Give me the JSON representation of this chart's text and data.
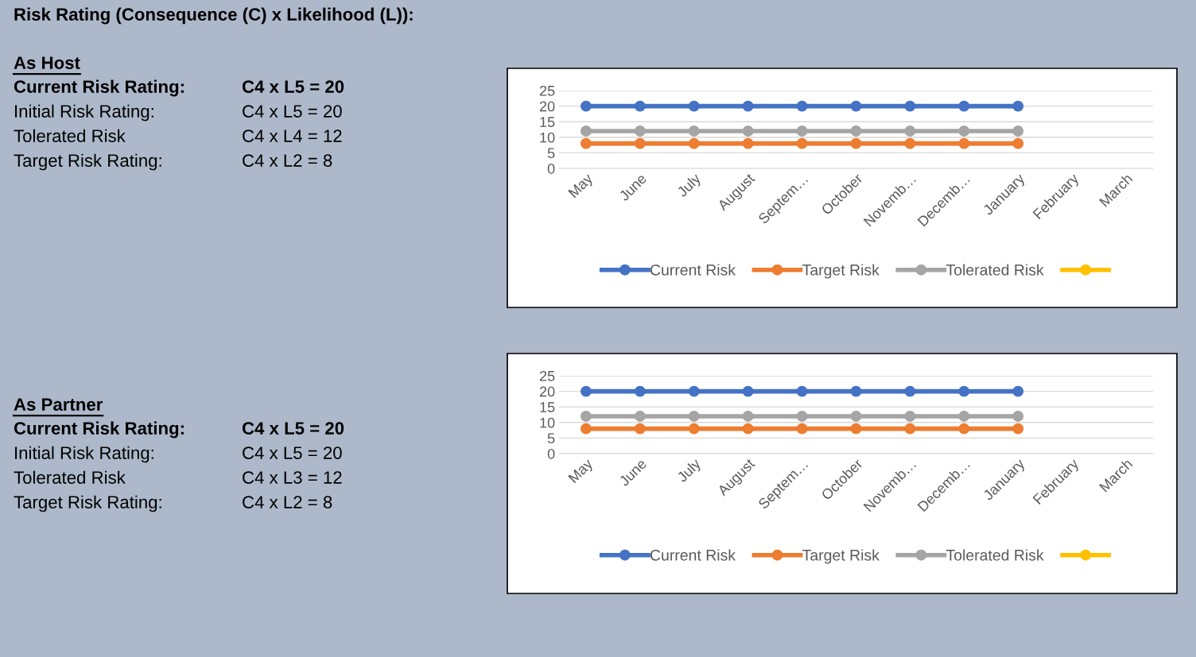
{
  "chart_data": [
    {
      "type": "other",
      "title": "Risk Rating (Consequence (C) x Likelihood (L)):",
      "subtitle": "As Host",
      "annotations": [
        "Current Risk Rating:",
        "C4 x L5 = 20",
        "Initial Risk Rating:",
        "C4 x L5 = 20",
        "Tolerated Risk",
        "C4 x L4 = 12",
        "Target Risk Rating:",
        "C4 x L2 = 8"
      ]
    },
    {
      "type": "line",
      "categories": [
        "May",
        "June",
        "July",
        "August",
        "Septem…",
        "October",
        "Novemb…",
        "Decemb…",
        "January",
        "February",
        "March"
      ],
      "series": [
        {
          "name": "Current Risk",
          "color": "#4472c4",
          "values": [
            20,
            20,
            20,
            20,
            20,
            20,
            20,
            20,
            20,
            null,
            null
          ]
        },
        {
          "name": "Target Risk",
          "color": "#ed7d31",
          "values": [
            8,
            8,
            8,
            8,
            8,
            8,
            8,
            8,
            8,
            null,
            null
          ]
        },
        {
          "name": "Tolerated Risk",
          "color": "#a5a5a5",
          "values": [
            12,
            12,
            12,
            12,
            12,
            12,
            12,
            12,
            12,
            null,
            null
          ]
        },
        {
          "color": "#ffc000",
          "values": [
            null,
            null,
            null,
            null,
            null,
            null,
            null,
            null,
            null,
            null,
            null
          ]
        }
      ],
      "ylim": [
        0,
        25
      ],
      "yticks": [
        0,
        5,
        10,
        15,
        20,
        25
      ],
      "grid": "y",
      "legend": "bottom",
      "marker": "circle",
      "line_style": "solid"
    },
    {
      "type": "other",
      "subtitle": "As Partner",
      "annotations": [
        "Current Risk Rating:",
        "C4 x L5 = 20",
        "Initial Risk Rating:",
        "C4 x L5 = 20",
        "Tolerated Risk",
        "C4 x L3 = 12",
        "Target Risk Rating:",
        "C4 x L2 = 8"
      ]
    },
    {
      "type": "line",
      "categories": [
        "May",
        "June",
        "July",
        "August",
        "Septem…",
        "October",
        "Novemb…",
        "Decemb…",
        "January",
        "February",
        "March"
      ],
      "series": [
        {
          "name": "Current Risk",
          "color": "#4472c4",
          "values": [
            20,
            20,
            20,
            20,
            20,
            20,
            20,
            20,
            20,
            null,
            null
          ]
        },
        {
          "name": "Target Risk",
          "color": "#ed7d31",
          "values": [
            8,
            8,
            8,
            8,
            8,
            8,
            8,
            8,
            8,
            null,
            null
          ]
        },
        {
          "name": "Tolerated Risk",
          "color": "#a5a5a5",
          "values": [
            12,
            12,
            12,
            12,
            12,
            12,
            12,
            12,
            12,
            null,
            null
          ]
        },
        {
          "color": "#ffc000",
          "values": [
            null,
            null,
            null,
            null,
            null,
            null,
            null,
            null,
            null,
            null,
            null
          ]
        }
      ],
      "ylim": [
        0,
        25
      ],
      "yticks": [
        0,
        5,
        10,
        15,
        20,
        25
      ],
      "grid": "y",
      "legend": "bottom",
      "marker": "circle",
      "line_style": "solid"
    }
  ]
}
